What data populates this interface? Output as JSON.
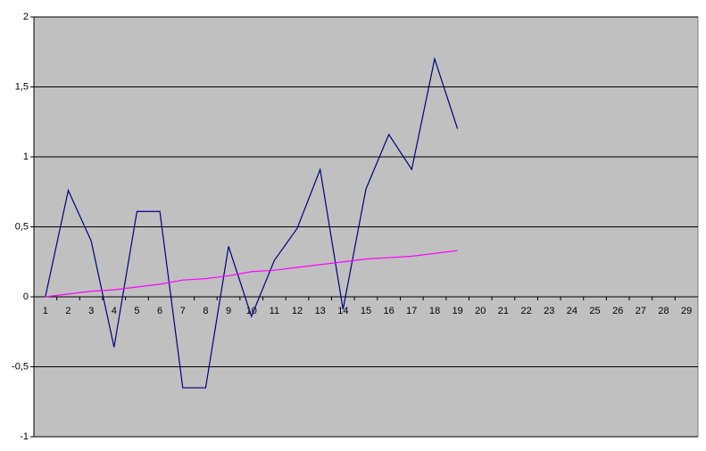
{
  "chart_data": {
    "type": "line",
    "categories": [
      "1",
      "2",
      "3",
      "4",
      "5",
      "6",
      "7",
      "8",
      "9",
      "10",
      "11",
      "12",
      "13",
      "14",
      "15",
      "16",
      "17",
      "18",
      "19",
      "20",
      "21",
      "22",
      "23",
      "24",
      "25",
      "26",
      "27",
      "28",
      "29"
    ],
    "series": [
      {
        "color": "#000080",
        "values": [
          0,
          0.76,
          0.4,
          -0.36,
          0.61,
          0.61,
          -0.65,
          -0.65,
          0.36,
          -0.14,
          0.26,
          0.49,
          0.91,
          -0.09,
          0.77,
          1.16,
          0.91,
          1.7,
          1.2,
          null,
          null,
          null,
          null,
          null,
          null,
          null,
          null,
          null,
          null
        ]
      },
      {
        "color": "#ff00ff",
        "values": [
          0,
          0.02,
          0.04,
          0.05,
          0.07,
          0.09,
          0.12,
          0.13,
          0.15,
          0.18,
          0.19,
          0.21,
          0.23,
          0.25,
          0.27,
          0.28,
          0.29,
          0.31,
          0.33,
          null,
          null,
          null,
          null,
          null,
          null,
          null,
          null,
          null,
          null
        ]
      }
    ],
    "ylim": [
      -1,
      2
    ],
    "yticks": [
      -1,
      {
        "value": -0.5,
        "label": "-0,5"
      },
      0,
      {
        "value": 0.5,
        "label": "0,5"
      },
      1,
      {
        "value": 1.5,
        "label": "1,5"
      },
      2
    ],
    "grid": true,
    "plot_background": "#c0c0c0"
  }
}
